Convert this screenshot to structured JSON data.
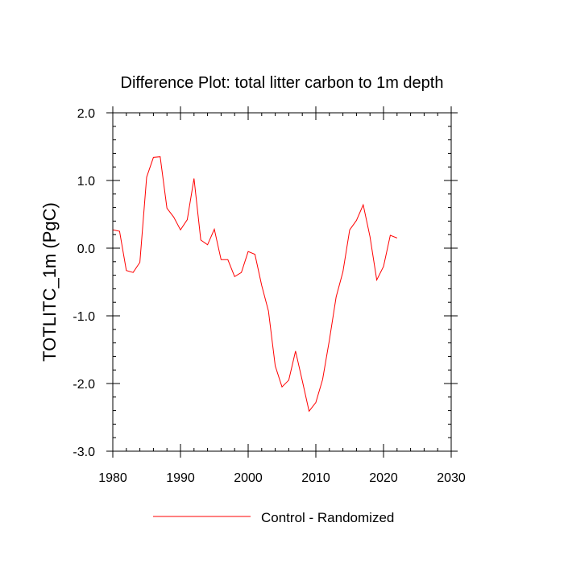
{
  "chart_data": {
    "type": "line",
    "title": "Difference Plot: total litter carbon to 1m depth",
    "xlabel": "",
    "ylabel": "TOTLITC_1m  (PgC)",
    "xlim": [
      1980,
      2030
    ],
    "ylim": [
      -3.0,
      2.0
    ],
    "xticks": [
      1980,
      1990,
      2000,
      2010,
      2020,
      2030
    ],
    "xtick_labels": [
      "1980",
      "1990",
      "2000",
      "2010",
      "2020",
      "2030"
    ],
    "yticks": [
      2.0,
      1.0,
      0.0,
      -1.0,
      -2.0,
      -3.0
    ],
    "ytick_labels": [
      "2.0",
      "1.0",
      "0.0",
      "-1.0",
      "-2.0",
      "-3.0"
    ],
    "grid": false,
    "legend_position": "bottom-center",
    "series": [
      {
        "name": "Control - Randomized",
        "color": "#ff0000",
        "x": [
          1980,
          1981,
          1982,
          1983,
          1984,
          1985,
          1986,
          1987,
          1988,
          1989,
          1990,
          1991,
          1992,
          1993,
          1994,
          1995,
          1996,
          1997,
          1998,
          1999,
          2000,
          2001,
          2002,
          2003,
          2004,
          2005,
          2006,
          2007,
          2008,
          2009,
          2010,
          2011,
          2012,
          2013,
          2014,
          2015,
          2016,
          2017,
          2018,
          2019,
          2020,
          2021,
          2022
        ],
        "y": [
          0.27,
          0.25,
          -0.33,
          -0.36,
          -0.21,
          1.05,
          1.34,
          1.35,
          0.59,
          0.46,
          0.27,
          0.42,
          1.03,
          0.12,
          0.05,
          0.28,
          -0.17,
          -0.17,
          -0.42,
          -0.36,
          -0.05,
          -0.09,
          -0.55,
          -0.93,
          -1.74,
          -2.05,
          -1.95,
          -1.52,
          -1.96,
          -2.41,
          -2.28,
          -1.94,
          -1.36,
          -0.72,
          -0.35,
          0.27,
          0.41,
          0.64,
          0.17,
          -0.47,
          -0.27,
          0.19,
          0.15
        ]
      }
    ]
  }
}
